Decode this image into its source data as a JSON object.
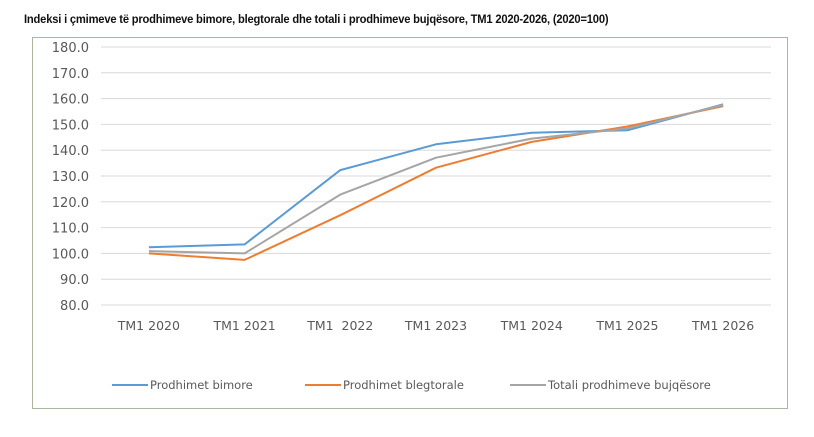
{
  "title": "Indeksi i çmimeve të prodhimeve bimore, blegtorale dhe totali i prodhimeve bujqësore, TM1 2020-2026, (2020=100)",
  "chart_data": {
    "type": "line",
    "title": "Indeksi i çmimeve të prodhimeve bimore, blegtorale dhe totali i prodhimeve bujqësore, TM1 2020-2026, (2020=100)",
    "xlabel": "",
    "ylabel": "",
    "categories": [
      "TM1 2020",
      "TM1 2021",
      "TM1  2022",
      "TM1 2023",
      "TM1 2024",
      "TM1 2025",
      "TM1 2026"
    ],
    "ylim": [
      80,
      180
    ],
    "yticks": [
      "180.0",
      "170.0",
      "160.0",
      "150.0",
      "140.0",
      "130.0",
      "120.0",
      "110.0",
      "100.0",
      "90.0",
      "80.0"
    ],
    "grid": true,
    "legend_position": "bottom",
    "series": [
      {
        "name": "Prodhimet bimore",
        "color": "#5b9bd5",
        "values": [
          102.4,
          103.5,
          132.3,
          142.3,
          146.8,
          147.7,
          157.8
        ]
      },
      {
        "name": "Prodhimet blegtorale",
        "color": "#ed7d31",
        "values": [
          100.0,
          97.5,
          114.8,
          133.2,
          143.2,
          149.2,
          157.1
        ]
      },
      {
        "name": "Totali prodhimeve bujqësore",
        "color": "#a5a5a5",
        "values": [
          100.9,
          100.0,
          122.8,
          137.1,
          144.5,
          148.4,
          157.5
        ]
      }
    ]
  }
}
